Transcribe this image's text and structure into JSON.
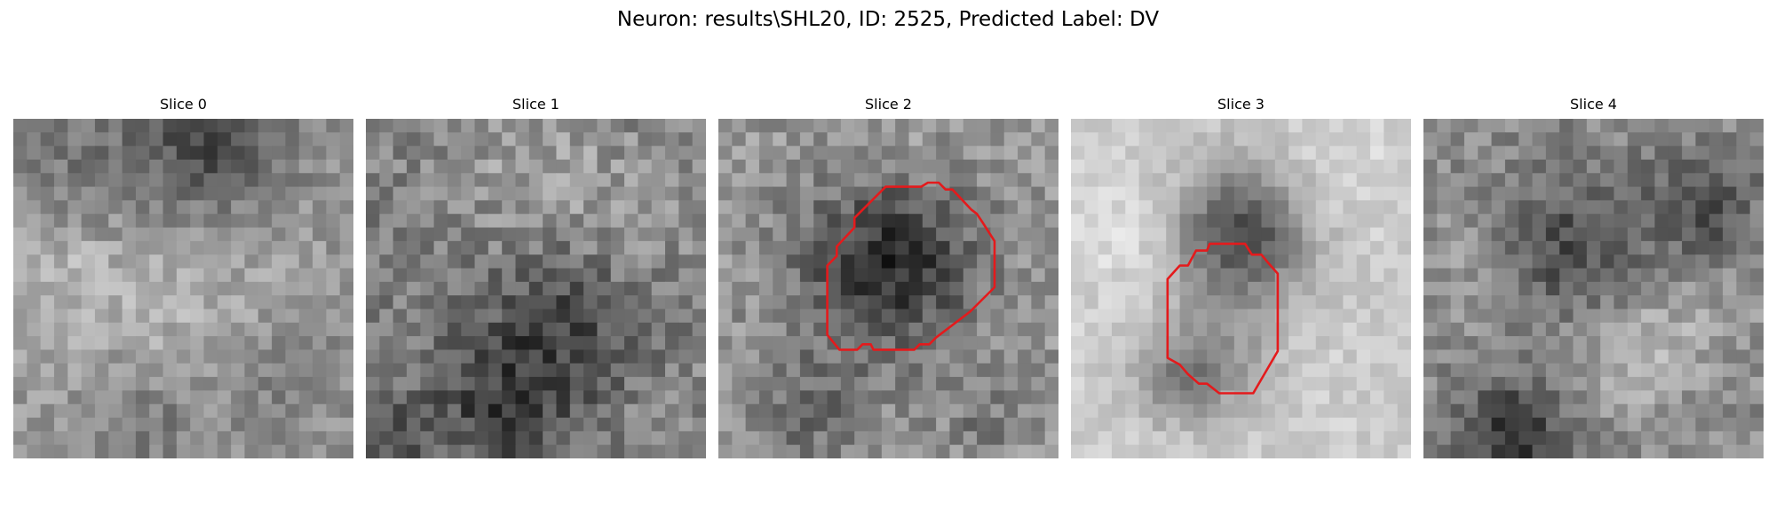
{
  "figure": {
    "title": "Neuron: results\\SHL20, ID: 2525, Predicted Label: DV"
  },
  "slices": [
    {
      "title": "Slice 0",
      "contour": null
    },
    {
      "title": "Slice 1",
      "contour": null
    },
    {
      "title": "Slice 2",
      "contour": "roi"
    },
    {
      "title": "Slice 3",
      "contour": "roi"
    },
    {
      "title": "Slice 4",
      "contour": null
    }
  ],
  "colors": {
    "contour": "#e41a1c",
    "colormap": "gray"
  }
}
